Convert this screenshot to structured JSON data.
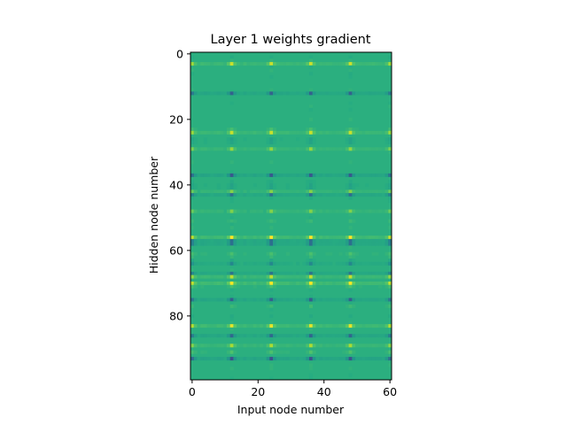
{
  "chart_data": {
    "type": "heatmap",
    "title": "Layer 1 weights gradient",
    "xlabel": "Input node number",
    "ylabel": "Hidden node number",
    "n_cols": 61,
    "n_rows": 100,
    "xlim": [
      -0.5,
      60.5
    ],
    "ylim": [
      99.5,
      -0.5
    ],
    "x_ticks": [
      0,
      20,
      40,
      60
    ],
    "y_ticks": [
      0,
      20,
      40,
      60,
      80
    ],
    "colormap": "viridis",
    "background_value": 0.0,
    "bright_rows": [
      3,
      24,
      29,
      42,
      48,
      56,
      68,
      70,
      83,
      89
    ],
    "dark_rows": [
      12,
      37,
      43,
      57,
      58,
      64,
      67,
      75,
      86,
      93
    ],
    "strong_cols": [
      12,
      24,
      36,
      48
    ],
    "edge_cols": [
      0,
      60
    ],
    "colors": {
      "base": "#33b17a",
      "outline": "#000000"
    }
  }
}
